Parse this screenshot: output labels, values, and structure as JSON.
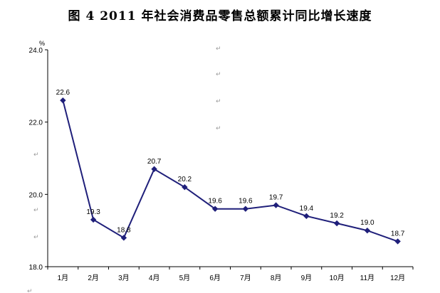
{
  "title": "图 4    2011 年社会消费品零售总额累计同比增长速度",
  "paragraph_mark": "↵",
  "chart_data": {
    "type": "line",
    "title": "图 4    2011 年社会消费品零售总额累计同比增长速度",
    "ylabel": "%",
    "xlabel": "",
    "categories": [
      "1月",
      "2月",
      "3月",
      "4月",
      "5月",
      "6月",
      "7月",
      "8月",
      "9月",
      "10月",
      "11月",
      "12月"
    ],
    "series": [
      {
        "values": [
          22.6,
          19.3,
          18.8,
          20.7,
          20.2,
          19.6,
          19.6,
          19.7,
          19.4,
          19.2,
          19.0,
          18.7
        ],
        "data_labels": [
          "22.6",
          "19.3",
          "18.8",
          "20.7",
          "20.2",
          "19.6",
          "19.6",
          "19.7",
          "19.4",
          "19.2",
          "19.0",
          "18.7"
        ]
      }
    ],
    "y_ticks": [
      18.0,
      20.0,
      22.0,
      24.0
    ],
    "y_tick_labels": [
      "18.0",
      "20.0",
      "22.0",
      "24.0"
    ],
    "ylim": [
      18.0,
      24.0
    ],
    "grid": false,
    "legend": "none",
    "line_color": "#1f1f7a",
    "marker": "diamond"
  }
}
